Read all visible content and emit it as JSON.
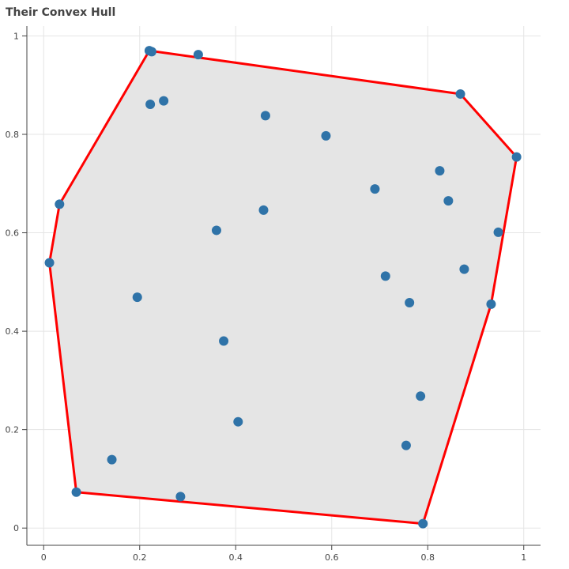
{
  "chart_data": {
    "type": "scatter",
    "title": "Their Convex Hull",
    "xlim": [
      -0.035,
      1.035
    ],
    "ylim": [
      -0.035,
      1.02
    ],
    "x_ticks": [
      "0",
      "0.2",
      "0.4",
      "0.6",
      "0.8",
      "1"
    ],
    "y_ticks": [
      "0",
      "0.2",
      "0.4",
      "0.6",
      "0.8",
      "1"
    ],
    "grid": true,
    "colors": {
      "points": "#2f73a8",
      "hull_line": "#ff0000",
      "hull_fill": "#e5e5e5",
      "grid": "#e5e5e5",
      "axis": "#444444"
    },
    "points": [
      {
        "x": 0.22,
        "y": 0.97
      },
      {
        "x": 0.225,
        "y": 0.968
      },
      {
        "x": 0.322,
        "y": 0.962
      },
      {
        "x": 0.868,
        "y": 0.882
      },
      {
        "x": 0.985,
        "y": 0.754
      },
      {
        "x": 0.033,
        "y": 0.658
      },
      {
        "x": 0.012,
        "y": 0.539
      },
      {
        "x": 0.068,
        "y": 0.073
      },
      {
        "x": 0.79,
        "y": 0.009
      },
      {
        "x": 0.222,
        "y": 0.861
      },
      {
        "x": 0.25,
        "y": 0.868
      },
      {
        "x": 0.462,
        "y": 0.838
      },
      {
        "x": 0.588,
        "y": 0.797
      },
      {
        "x": 0.825,
        "y": 0.726
      },
      {
        "x": 0.69,
        "y": 0.689
      },
      {
        "x": 0.843,
        "y": 0.665
      },
      {
        "x": 0.458,
        "y": 0.646
      },
      {
        "x": 0.36,
        "y": 0.605
      },
      {
        "x": 0.947,
        "y": 0.601
      },
      {
        "x": 0.876,
        "y": 0.526
      },
      {
        "x": 0.712,
        "y": 0.512
      },
      {
        "x": 0.195,
        "y": 0.469
      },
      {
        "x": 0.762,
        "y": 0.458
      },
      {
        "x": 0.932,
        "y": 0.455
      },
      {
        "x": 0.375,
        "y": 0.38
      },
      {
        "x": 0.785,
        "y": 0.268
      },
      {
        "x": 0.405,
        "y": 0.216
      },
      {
        "x": 0.755,
        "y": 0.168
      },
      {
        "x": 0.142,
        "y": 0.139
      },
      {
        "x": 0.285,
        "y": 0.064
      }
    ],
    "hull": [
      {
        "x": 0.22,
        "y": 0.97
      },
      {
        "x": 0.868,
        "y": 0.882
      },
      {
        "x": 0.985,
        "y": 0.754
      },
      {
        "x": 0.932,
        "y": 0.455
      },
      {
        "x": 0.79,
        "y": 0.009
      },
      {
        "x": 0.068,
        "y": 0.073
      },
      {
        "x": 0.012,
        "y": 0.539
      },
      {
        "x": 0.033,
        "y": 0.658
      },
      {
        "x": 0.22,
        "y": 0.97
      }
    ]
  }
}
